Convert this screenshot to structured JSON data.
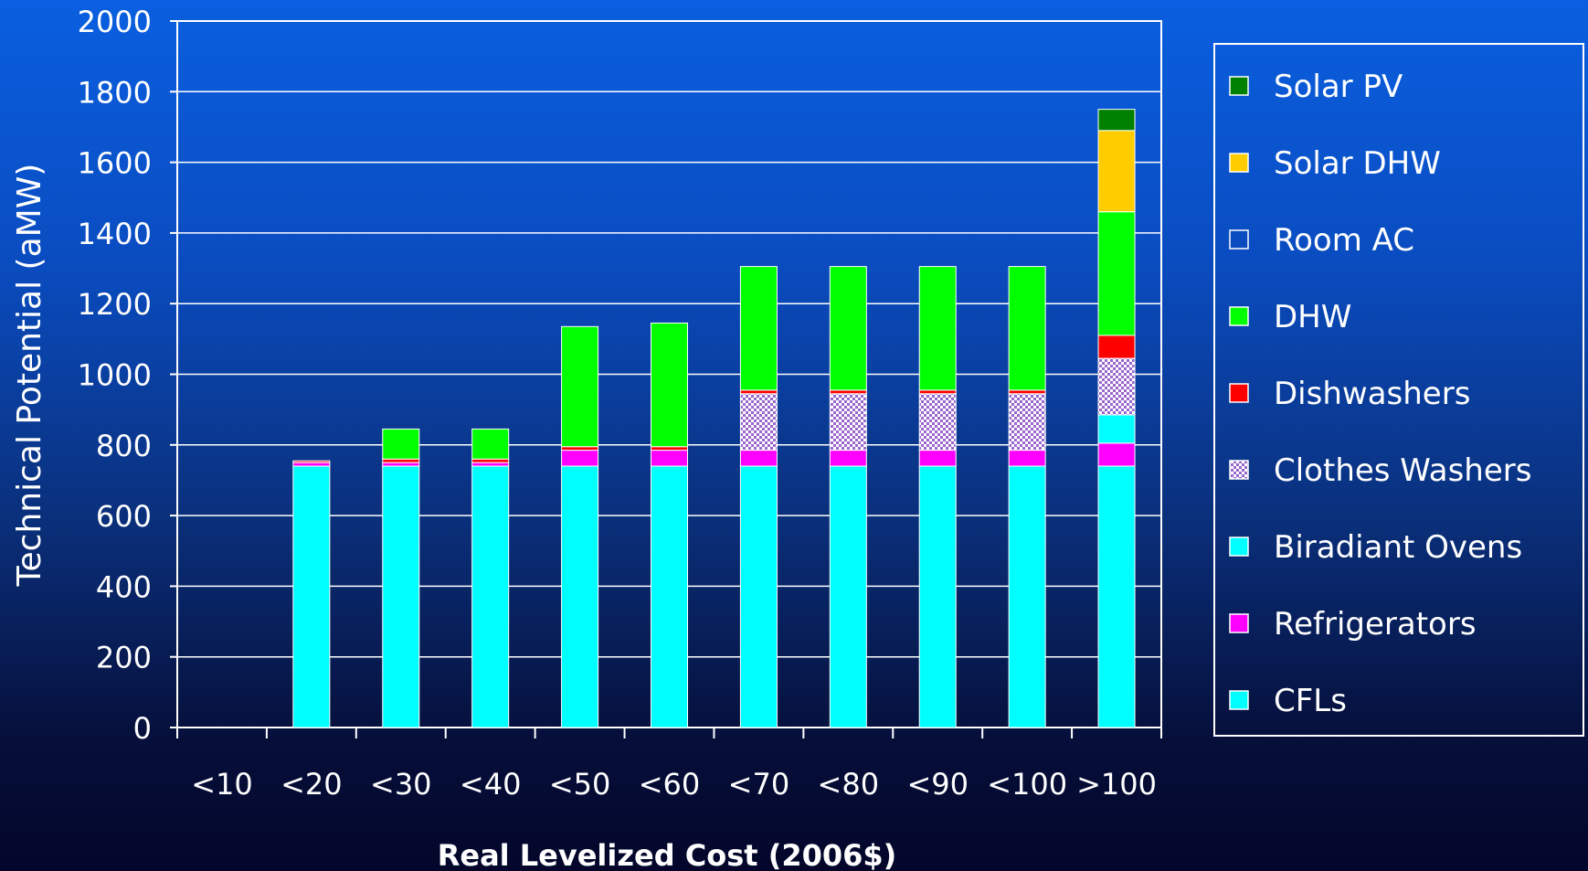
{
  "chart_data": {
    "type": "bar",
    "stacked": true,
    "title": "",
    "xlabel": "Real Levelized Cost (2006$)",
    "ylabel": "Technical Potential (aMW)",
    "ylim": [
      0,
      2000
    ],
    "yticks": [
      0,
      200,
      400,
      600,
      800,
      1000,
      1200,
      1400,
      1600,
      1800,
      2000
    ],
    "grid": true,
    "legend_position": "right",
    "categories": [
      "<10",
      "<20",
      "<30",
      "<40",
      "<50",
      "<60",
      "<70",
      "<80",
      "<90",
      "<100",
      ">100"
    ],
    "series": [
      {
        "name": "CFLs",
        "color": "#00ffff",
        "pattern": "solid",
        "values": [
          0,
          740,
          740,
          740,
          740,
          740,
          740,
          740,
          740,
          740,
          740
        ]
      },
      {
        "name": "Refrigerators",
        "color": "#ff00ff",
        "pattern": "solid",
        "values": [
          0,
          10,
          10,
          10,
          45,
          45,
          45,
          45,
          45,
          45,
          65
        ]
      },
      {
        "name": "Biradiant Ovens",
        "color": "#00ffff",
        "pattern": "solid",
        "values": [
          0,
          0,
          0,
          0,
          0,
          0,
          0,
          0,
          0,
          0,
          80
        ]
      },
      {
        "name": "Clothes Washers",
        "color": "#9966cc",
        "pattern": "checker",
        "values": [
          0,
          0,
          0,
          0,
          0,
          0,
          160,
          160,
          160,
          160,
          160
        ]
      },
      {
        "name": "Dishwashers",
        "color": "#ff0000",
        "pattern": "solid",
        "values": [
          0,
          5,
          10,
          10,
          10,
          10,
          10,
          10,
          10,
          10,
          65
        ]
      },
      {
        "name": "DHW",
        "color": "#00ff00",
        "pattern": "solid",
        "values": [
          0,
          0,
          85,
          85,
          340,
          350,
          350,
          350,
          350,
          350,
          350
        ]
      },
      {
        "name": "Room AC",
        "color": "#0a4cc0",
        "pattern": "solid",
        "values": [
          0,
          0,
          0,
          0,
          0,
          0,
          0,
          0,
          0,
          0,
          0
        ]
      },
      {
        "name": "Solar DHW",
        "color": "#ffcc00",
        "pattern": "solid",
        "values": [
          0,
          0,
          0,
          0,
          0,
          0,
          0,
          0,
          0,
          0,
          230
        ]
      },
      {
        "name": "Solar PV",
        "color": "#008000",
        "pattern": "solid",
        "values": [
          0,
          0,
          0,
          0,
          0,
          0,
          0,
          0,
          0,
          0,
          60
        ]
      }
    ]
  }
}
